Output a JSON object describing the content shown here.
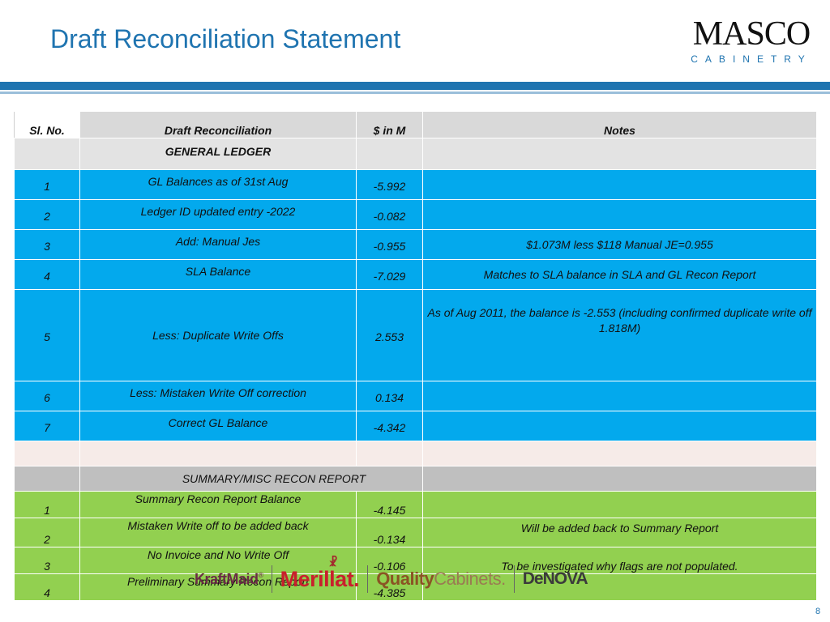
{
  "title": "Draft Reconciliation Statement",
  "logo": {
    "name": "MASCO",
    "sub": "CABINETRY"
  },
  "table": {
    "headers": [
      "Sl. No.",
      "Draft Reconciliation",
      "$ in M",
      "Notes"
    ],
    "section1": "GENERAL LEDGER",
    "rows1": [
      {
        "no": "1",
        "desc": "GL Balances as of 31st Aug",
        "amount": "-5.992",
        "note": ""
      },
      {
        "no": "2",
        "desc": "Ledger ID updated entry -2022",
        "amount": "-0.082",
        "note": ""
      },
      {
        "no": "3",
        "desc": "Add: Manual Jes",
        "amount": "-0.955",
        "note": "$1.073M less $118 Manual JE=0.955"
      },
      {
        "no": "4",
        "desc": "SLA Balance",
        "amount": "-7.029",
        "note": "Matches to SLA balance in SLA and GL Recon Report"
      },
      {
        "no": "5",
        "desc": "Less: Duplicate Write Offs",
        "amount": "2.553",
        "note": "As of Aug 2011, the balance is -2.553 (including confirmed duplicate write off 1.818M)"
      },
      {
        "no": "6",
        "desc": "Less: Mistaken Write Off correction",
        "amount": "0.134",
        "note": ""
      },
      {
        "no": "7",
        "desc": "Correct GL Balance",
        "amount": "-4.342",
        "note": ""
      }
    ],
    "section2": "SUMMARY/MISC RECON REPORT",
    "rows2": [
      {
        "no": "1",
        "desc": "Summary  Recon Report Balance",
        "amount": "-4.145",
        "note": ""
      },
      {
        "no": "2",
        "desc": "Mistaken Write off to be added back",
        "amount": "-0.134",
        "note": "Will be added back to Summary Report"
      },
      {
        "no": "3",
        "desc": "No Invoice and No Write Off",
        "amount": "-0.106",
        "note": "To be investigated why flags are not populated."
      },
      {
        "no": "4",
        "desc": "Preliminary Summary Recon Report",
        "amount": "-4.385",
        "note": ""
      }
    ]
  },
  "brands": {
    "kraftmaid": "KraftMaid",
    "kraftmaid_mark": "®",
    "merillat": "Merillat.",
    "quality_bold": "Quality",
    "quality_rest": "Cabinets.",
    "denova": "DeNOVA"
  },
  "page_number": "8",
  "colors": {
    "title_blue": "#1f74b0",
    "ledger_blue": "#03a9ed",
    "summary_green": "#92d050",
    "header_gray": "#d9d9d9"
  }
}
